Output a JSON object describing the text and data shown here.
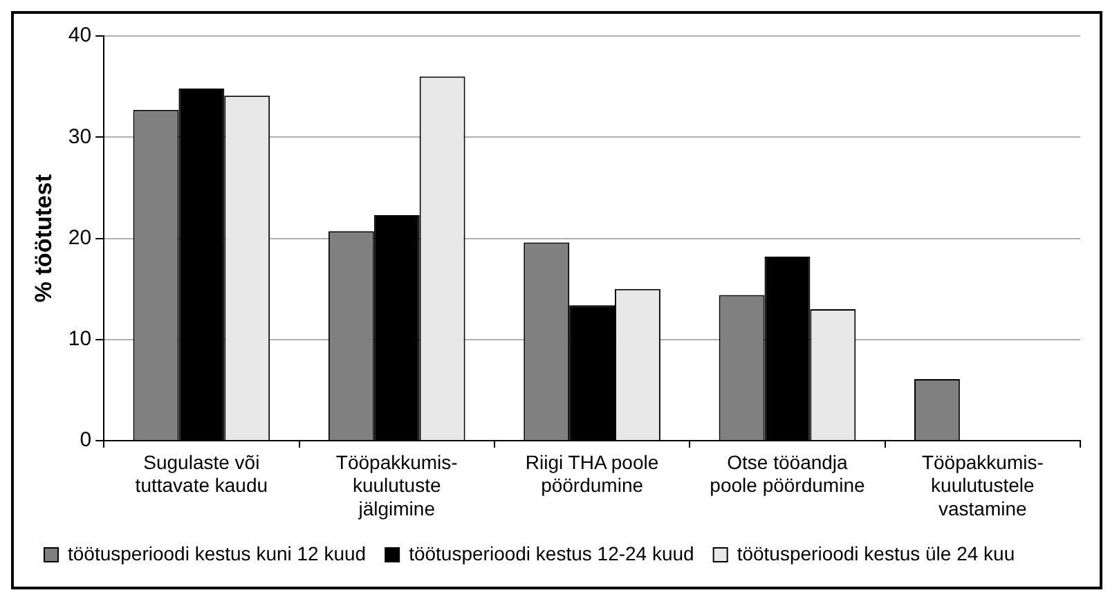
{
  "chart_data": {
    "type": "bar",
    "ylabel": "% töötutest",
    "categories": [
      "Sugulaste või tuttavate kaudu",
      "Tööpakkumis-kuulutuste jälgimine",
      "Riigi THA poole pöördumine",
      "Otse tööandja poole pöördumine",
      "Tööpakkumis-kuulutustele vastamine"
    ],
    "series": [
      {
        "name": "töötusperioodi kestus kuni 12 kuud",
        "color": "#808080",
        "values": [
          32.7,
          20.7,
          19.6,
          14.4,
          6.1
        ]
      },
      {
        "name": "töötusperioodi kestus 12-24 kuud",
        "color": "#000000",
        "values": [
          34.8,
          22.3,
          13.4,
          18.2,
          0
        ]
      },
      {
        "name": "töötusperioodi kestus üle 24 kuu",
        "color": "#e8e8e8",
        "values": [
          34.1,
          36.0,
          15.0,
          13.0,
          0
        ]
      }
    ],
    "ylim": [
      0,
      40
    ],
    "yticks": [
      0,
      10,
      20,
      30,
      40
    ],
    "grid": "y",
    "legend": "bottom"
  }
}
